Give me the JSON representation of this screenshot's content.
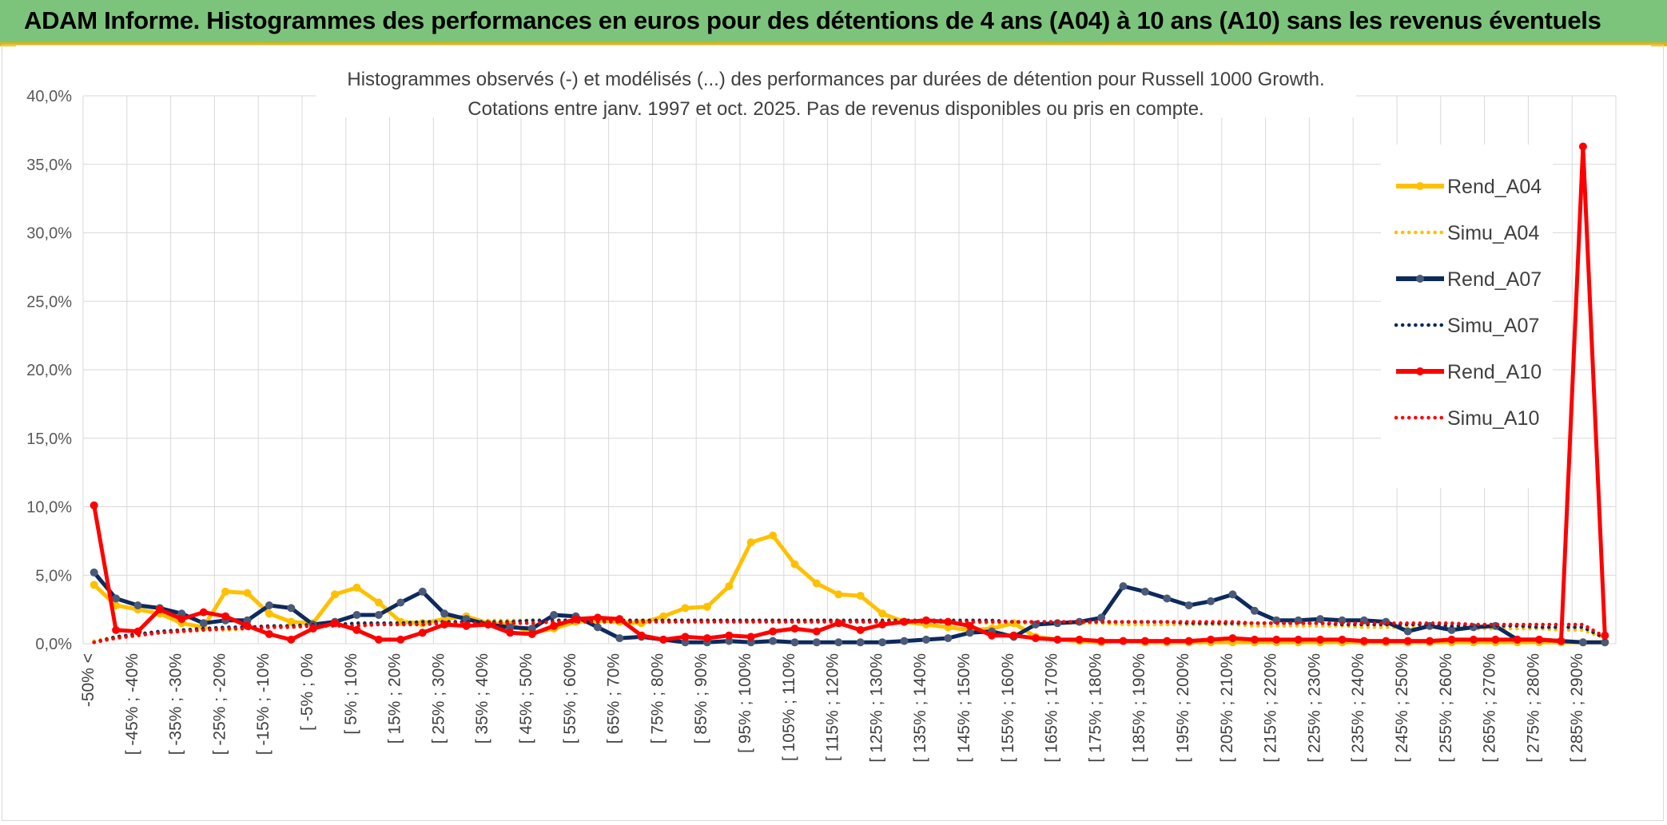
{
  "banner": {
    "title": "ADAM Informe. Histogrammes des performances en euros pour des détentions de 4 ans (A04) à 10 ans (A10) sans les revenus éventuels"
  },
  "colors": {
    "banner_bg": "#7cc47c",
    "a04": "#ffc000",
    "a07": "#0d2a5c",
    "a07_marker": "#4a5a78",
    "a10": "#ff0000",
    "grid": "#d9d9d9"
  },
  "chart_data": {
    "type": "line",
    "title": "Histogrammes observés (-) et modélisés (...) des performances par durées de détention pour Russell 1000 Growth.",
    "subtitle": "Cotations entre janv. 1997 et oct. 2025. Pas de revenus disponibles ou pris en compte.",
    "xlabel": "",
    "ylabel": "",
    "ylim": [
      0,
      40
    ],
    "yticks": [
      "0,0%",
      "5,0%",
      "10,0%",
      "15,0%",
      "20,0%",
      "25,0%",
      "30,0%",
      "35,0%",
      "40,0%"
    ],
    "grid": true,
    "legend_position": "right",
    "tick_labels": [
      "-50% <",
      "[ -45% ; -40%",
      "[ -35% ; -30%",
      "[ -25% ; -20%",
      "[ -15% ; -10%",
      "[ -5% ; 0%",
      "[ 5% ; 10%",
      "[ 15% ; 20%",
      "[ 25% ; 30%",
      "[ 35% ; 40%",
      "[ 45% ; 50%",
      "[ 55% ; 60%",
      "[ 65% ; 70%",
      "[ 75% ; 80%",
      "[ 85% ; 90%",
      "[ 95% ; 100%",
      "[ 105% ; 110%",
      "[ 115% ; 120%",
      "[ 125% ; 130%",
      "[ 135% ; 140%",
      "[ 145% ; 150%",
      "[ 155% ; 160%",
      "[ 165% ; 170%",
      "[ 175% ; 180%",
      "[ 185% ; 190%",
      "[ 195% ; 200%",
      "[ 205% ; 210%",
      "[ 215% ; 220%",
      "[ 225% ; 230%",
      "[ 235% ; 240%",
      "[ 245% ; 250%",
      "[ 255% ; 260%",
      "[ 265% ; 270%",
      "[ 275% ; 280%",
      "[ 285% ; 290%"
    ],
    "x_count": 70,
    "series": [
      {
        "name": "Rend_A04",
        "style": "solid",
        "color": "#ffc000",
        "values": [
          4.3,
          2.8,
          2.5,
          2.2,
          1.5,
          1.2,
          3.8,
          3.7,
          2.2,
          1.6,
          1.5,
          3.6,
          4.1,
          3.0,
          1.6,
          1.5,
          1.8,
          2.0,
          1.5,
          1.4,
          0.8,
          1.1,
          1.6,
          1.7,
          1.6,
          1.5,
          2.0,
          2.6,
          2.7,
          4.2,
          7.4,
          7.9,
          5.8,
          4.4,
          3.6,
          3.5,
          2.2,
          1.6,
          1.4,
          1.2,
          1.0,
          1.1,
          1.5,
          0.5,
          0.3,
          0.2,
          0.1,
          0.2,
          0.1,
          0.1,
          0.1,
          0.1,
          0.1,
          0.1,
          0.1,
          0.1,
          0.1,
          0.1,
          0.1,
          0.1,
          0.1,
          0.1,
          0.1,
          0.1,
          0.1,
          0.1,
          0.1,
          0.1,
          0.1,
          0.1
        ]
      },
      {
        "name": "Simu_A04",
        "style": "dotted",
        "color": "#ffc000",
        "values": [
          0.2,
          0.5,
          0.7,
          0.8,
          0.9,
          1.0,
          1.0,
          1.1,
          1.2,
          1.3,
          1.3,
          1.4,
          1.4,
          1.5,
          1.5,
          1.6,
          1.6,
          1.6,
          1.7,
          1.7,
          1.7,
          1.7,
          1.7,
          1.7,
          1.7,
          1.7,
          1.7,
          1.7,
          1.7,
          1.7,
          1.7,
          1.7,
          1.7,
          1.7,
          1.7,
          1.6,
          1.6,
          1.6,
          1.6,
          1.6,
          1.6,
          1.5,
          1.5,
          1.5,
          1.5,
          1.5,
          1.5,
          1.4,
          1.4,
          1.4,
          1.4,
          1.4,
          1.4,
          1.3,
          1.3,
          1.3,
          1.3,
          1.3,
          1.2,
          1.2,
          1.2,
          1.2,
          1.2,
          1.1,
          1.1,
          1.1,
          1.1,
          1.0,
          1.0,
          0.4
        ]
      },
      {
        "name": "Rend_A07",
        "style": "solid",
        "color": "#0d2a5c",
        "values": [
          5.2,
          3.3,
          2.8,
          2.6,
          2.2,
          1.5,
          1.7,
          1.7,
          2.8,
          2.6,
          1.4,
          1.6,
          2.1,
          2.1,
          3.0,
          3.8,
          2.2,
          1.8,
          1.4,
          1.2,
          1.1,
          2.1,
          2.0,
          1.2,
          0.4,
          0.5,
          0.3,
          0.1,
          0.1,
          0.2,
          0.1,
          0.2,
          0.1,
          0.1,
          0.1,
          0.1,
          0.1,
          0.2,
          0.3,
          0.4,
          0.8,
          0.9,
          0.5,
          1.4,
          1.5,
          1.6,
          1.9,
          4.2,
          3.8,
          3.3,
          2.8,
          3.1,
          3.6,
          2.4,
          1.7,
          1.7,
          1.8,
          1.7,
          1.7,
          1.6,
          0.9,
          1.3,
          1.0,
          1.2,
          1.3,
          0.3,
          0.3,
          0.2,
          0.1,
          0.1
        ]
      },
      {
        "name": "Simu_A07",
        "style": "dotted",
        "color": "#0d2a5c",
        "values": [
          0.1,
          0.5,
          0.7,
          0.9,
          1.0,
          1.1,
          1.2,
          1.2,
          1.3,
          1.3,
          1.4,
          1.4,
          1.5,
          1.5,
          1.5,
          1.6,
          1.6,
          1.6,
          1.6,
          1.6,
          1.7,
          1.7,
          1.7,
          1.7,
          1.7,
          1.7,
          1.7,
          1.7,
          1.7,
          1.7,
          1.7,
          1.7,
          1.7,
          1.7,
          1.7,
          1.7,
          1.7,
          1.7,
          1.7,
          1.7,
          1.7,
          1.7,
          1.6,
          1.6,
          1.6,
          1.6,
          1.6,
          1.6,
          1.6,
          1.6,
          1.5,
          1.5,
          1.5,
          1.5,
          1.5,
          1.5,
          1.5,
          1.4,
          1.4,
          1.4,
          1.4,
          1.4,
          1.3,
          1.3,
          1.3,
          1.3,
          1.2,
          1.2,
          1.2,
          0.4
        ]
      },
      {
        "name": "Rend_A10",
        "style": "solid",
        "color": "#ff0000",
        "values": [
          10.1,
          1.0,
          0.9,
          2.5,
          1.8,
          2.3,
          2.0,
          1.3,
          0.7,
          0.3,
          1.1,
          1.5,
          1.0,
          0.3,
          0.3,
          0.8,
          1.4,
          1.3,
          1.4,
          0.8,
          0.7,
          1.3,
          1.8,
          1.9,
          1.8,
          0.6,
          0.3,
          0.5,
          0.4,
          0.6,
          0.5,
          0.9,
          1.1,
          0.9,
          1.5,
          1.0,
          1.4,
          1.6,
          1.7,
          1.6,
          1.3,
          0.6,
          0.6,
          0.4,
          0.3,
          0.3,
          0.2,
          0.2,
          0.2,
          0.2,
          0.2,
          0.3,
          0.4,
          0.3,
          0.3,
          0.3,
          0.3,
          0.3,
          0.2,
          0.2,
          0.2,
          0.2,
          0.3,
          0.3,
          0.3,
          0.3,
          0.3,
          0.2,
          36.3,
          0.6
        ]
      },
      {
        "name": "Simu_A10",
        "style": "dotted",
        "color": "#ff0000",
        "values": [
          0.1,
          0.4,
          0.6,
          0.8,
          0.9,
          1.0,
          1.1,
          1.1,
          1.2,
          1.2,
          1.3,
          1.3,
          1.3,
          1.4,
          1.4,
          1.4,
          1.5,
          1.5,
          1.5,
          1.5,
          1.5,
          1.6,
          1.6,
          1.6,
          1.6,
          1.6,
          1.6,
          1.6,
          1.6,
          1.6,
          1.6,
          1.6,
          1.6,
          1.6,
          1.6,
          1.6,
          1.6,
          1.6,
          1.6,
          1.6,
          1.6,
          1.6,
          1.6,
          1.6,
          1.6,
          1.6,
          1.6,
          1.6,
          1.6,
          1.6,
          1.6,
          1.6,
          1.6,
          1.5,
          1.5,
          1.5,
          1.5,
          1.5,
          1.5,
          1.5,
          1.5,
          1.5,
          1.5,
          1.4,
          1.4,
          1.4,
          1.4,
          1.4,
          1.4,
          0.5
        ]
      }
    ]
  }
}
